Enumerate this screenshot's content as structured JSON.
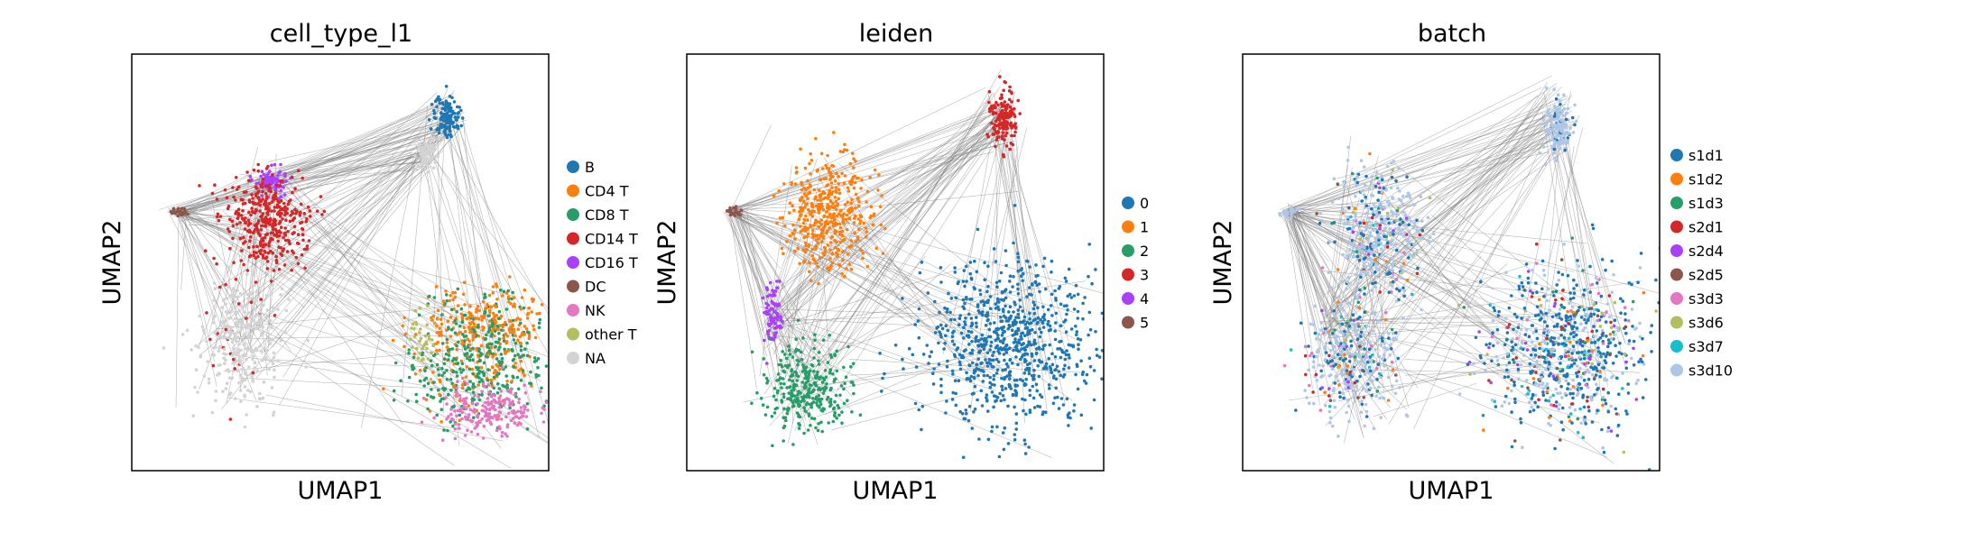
{
  "chart_data": [
    {
      "type": "scatter",
      "title": "cell_type_l1",
      "xlabel": "UMAP1",
      "ylabel": "UMAP2",
      "grid": false,
      "ticks": false,
      "legend_position": "right",
      "legend": [
        {
          "name": "B",
          "color": "#1f77b4"
        },
        {
          "name": "CD4 T",
          "color": "#ff7f0e"
        },
        {
          "name": "CD8 T",
          "color": "#279e68"
        },
        {
          "name": "CD14 T",
          "color": "#d62728"
        },
        {
          "name": "CD16 T",
          "color": "#aa40fc"
        },
        {
          "name": "DC",
          "color": "#8c564b"
        },
        {
          "name": "NK",
          "color": "#e377c2"
        },
        {
          "name": "other T",
          "color": "#b5bd61"
        },
        {
          "name": "NA",
          "color": "#d3d3d3"
        }
      ]
    },
    {
      "type": "scatter",
      "title": "leiden",
      "xlabel": "UMAP1",
      "ylabel": "UMAP2",
      "grid": false,
      "ticks": false,
      "legend_position": "right",
      "legend": [
        {
          "name": "0",
          "color": "#1f77b4"
        },
        {
          "name": "1",
          "color": "#ff7f0e"
        },
        {
          "name": "2",
          "color": "#279e68"
        },
        {
          "name": "3",
          "color": "#d62728"
        },
        {
          "name": "4",
          "color": "#aa40fc"
        },
        {
          "name": "5",
          "color": "#8c564b"
        }
      ]
    },
    {
      "type": "scatter",
      "title": "batch",
      "xlabel": "UMAP1",
      "ylabel": "UMAP2",
      "grid": false,
      "ticks": false,
      "legend_position": "right",
      "legend": [
        {
          "name": "s1d1",
          "color": "#1f77b4"
        },
        {
          "name": "s1d2",
          "color": "#ff7f0e"
        },
        {
          "name": "s1d3",
          "color": "#279e68"
        },
        {
          "name": "s2d1",
          "color": "#d62728"
        },
        {
          "name": "s2d4",
          "color": "#aa40fc"
        },
        {
          "name": "s2d5",
          "color": "#8c564b"
        },
        {
          "name": "s3d3",
          "color": "#e377c2"
        },
        {
          "name": "s3d6",
          "color": "#b5bd61"
        },
        {
          "name": "s3d7",
          "color": "#17becf"
        },
        {
          "name": "s3d10",
          "color": "#aec7e8"
        }
      ]
    }
  ],
  "colors": {
    "edges": "#7f7f7f",
    "na": "#d3d3d3"
  }
}
